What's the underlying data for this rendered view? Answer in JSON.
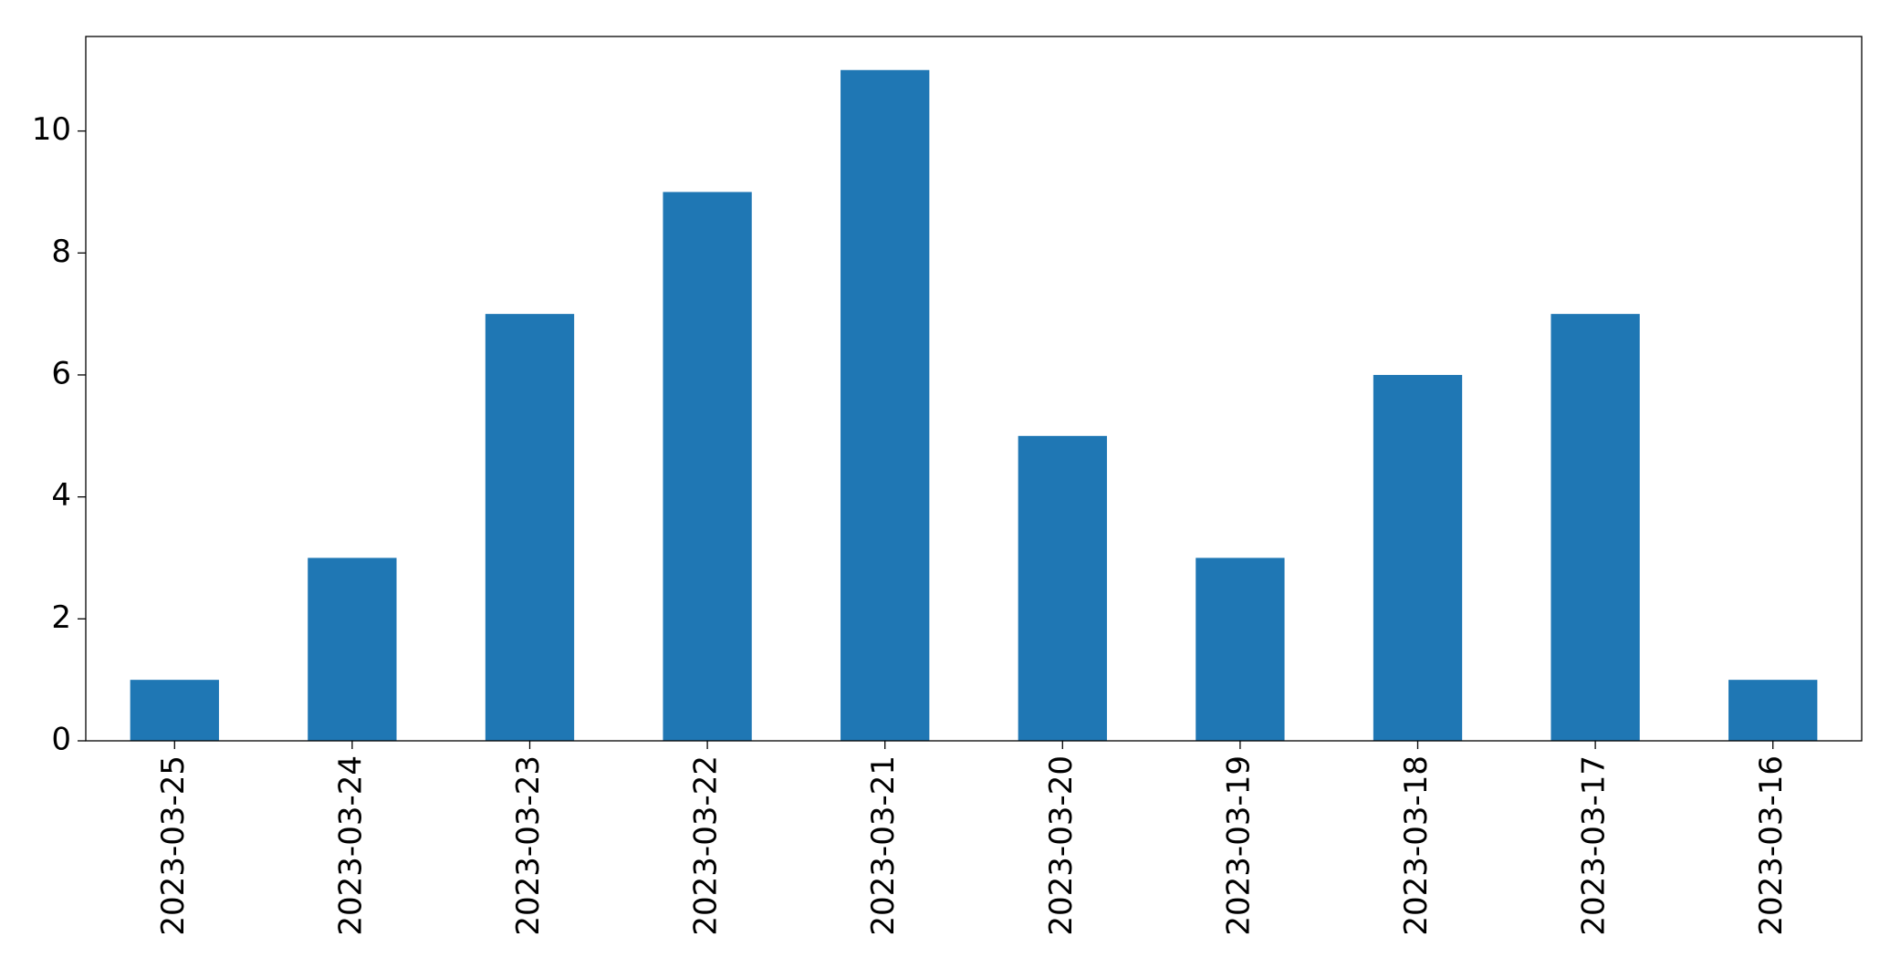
{
  "chart_data": {
    "type": "bar",
    "categories": [
      "2023-03-25",
      "2023-03-24",
      "2023-03-23",
      "2023-03-22",
      "2023-03-21",
      "2023-03-20",
      "2023-03-19",
      "2023-03-18",
      "2023-03-17",
      "2023-03-16"
    ],
    "values": [
      1,
      3,
      7,
      9,
      11,
      5,
      3,
      6,
      7,
      1
    ],
    "color": "#1f77b4",
    "ylim": [
      0,
      11.55
    ],
    "yticks": [
      0,
      2,
      4,
      6,
      8,
      10
    ],
    "grid": false
  }
}
